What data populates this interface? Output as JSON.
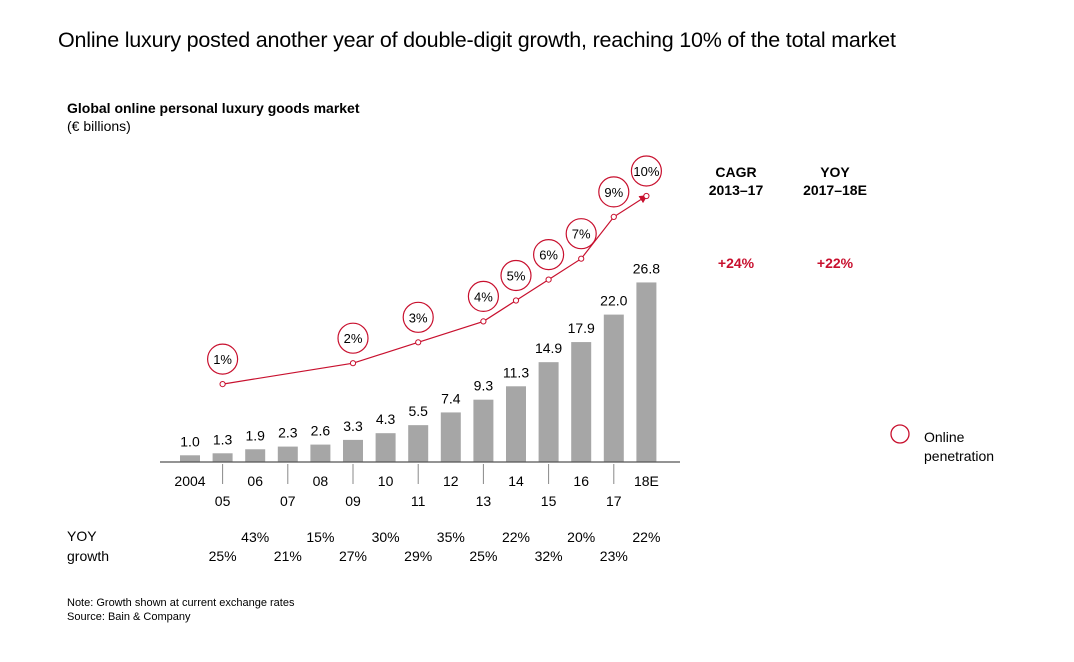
{
  "headline": "Online luxury posted another year of double-digit growth, reaching 10% of the total market",
  "subtitle": "Global online personal luxury goods market",
  "unit_label": "(€ billions)",
  "note": "Note: Growth shown at current exchange rates",
  "source": "Source: Bain & Company",
  "colors": {
    "bar": "#a6a6a6",
    "accent": "#c8102e",
    "axis": "#555555",
    "text": "#000000"
  },
  "chart_data": {
    "type": "bar",
    "categories": [
      "2004",
      "05",
      "06",
      "07",
      "08",
      "09",
      "10",
      "11",
      "12",
      "13",
      "14",
      "15",
      "16",
      "17",
      "18E"
    ],
    "values": [
      1.0,
      1.3,
      1.9,
      2.3,
      2.6,
      3.3,
      4.3,
      5.5,
      7.4,
      9.3,
      11.3,
      14.9,
      17.9,
      22.0,
      26.8
    ],
    "value_labels": [
      "1.0",
      "1.3",
      "1.9",
      "2.3",
      "2.6",
      "3.3",
      "4.3",
      "5.5",
      "7.4",
      "9.3",
      "11.3",
      "14.9",
      "17.9",
      "22.0",
      "26.8"
    ],
    "online_penetration": {
      "legend": "Online penetration",
      "categories": [
        "05",
        "09",
        "11",
        "13",
        "14",
        "15",
        "16",
        "17",
        "18E"
      ],
      "labels": [
        "1%",
        "2%",
        "3%",
        "4%",
        "5%",
        "6%",
        "7%",
        "9%",
        "10%"
      ],
      "values": [
        1,
        2,
        3,
        4,
        5,
        6,
        7,
        9,
        10
      ]
    },
    "yoy_growth": {
      "label_line1": "YOY",
      "label_line2": "growth",
      "categories": [
        "05",
        "06",
        "07",
        "08",
        "09",
        "10",
        "11",
        "12",
        "13",
        "14",
        "15",
        "16",
        "17",
        "18E"
      ],
      "values": [
        "25%",
        "43%",
        "21%",
        "15%",
        "27%",
        "30%",
        "29%",
        "35%",
        "25%",
        "22%",
        "32%",
        "20%",
        "23%",
        "22%"
      ]
    },
    "summary": {
      "cagr_header_line1": "CAGR",
      "cagr_header_line2": "2013–17",
      "cagr_value": "+24%",
      "yoy_header_line1": "YOY",
      "yoy_header_line2": "2017–18E",
      "yoy_value": "+22%"
    },
    "legend_line1": "Online",
    "legend_line2": "penetration"
  }
}
